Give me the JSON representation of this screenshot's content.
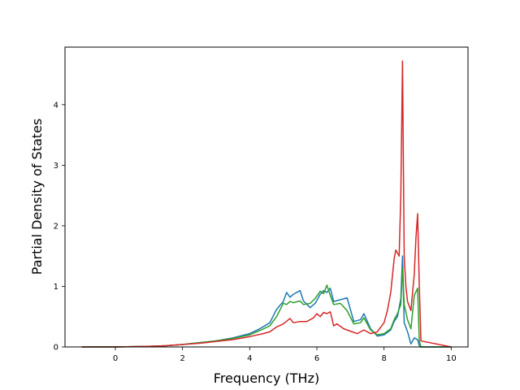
{
  "chart_data": {
    "type": "line",
    "title": "",
    "xlabel": "Frequency (THz)",
    "ylabel": "Partial Density of States",
    "xlim": [
      -1.5,
      10.5
    ],
    "ylim": [
      0,
      4.95
    ],
    "xticks": [
      0,
      2,
      4,
      6,
      8,
      10
    ],
    "yticks": [
      0,
      1,
      2,
      3,
      4
    ],
    "grid": false,
    "legend": "none",
    "series": [
      {
        "color": "#1f77b4",
        "x": [
          -1.0,
          0.0,
          0.5,
          1.0,
          1.5,
          2.0,
          2.5,
          3.0,
          3.5,
          4.0,
          4.3,
          4.6,
          4.8,
          5.0,
          5.1,
          5.2,
          5.3,
          5.5,
          5.6,
          5.8,
          5.95,
          6.1,
          6.2,
          6.3,
          6.4,
          6.5,
          6.7,
          6.9,
          7.1,
          7.3,
          7.4,
          7.6,
          7.8,
          8.0,
          8.2,
          8.3,
          8.4,
          8.5,
          8.55,
          8.6,
          8.7,
          8.8,
          8.9,
          9.0,
          9.05,
          9.1,
          9.2,
          10.0
        ],
        "y": [
          0,
          0,
          0.005,
          0.01,
          0.02,
          0.04,
          0.07,
          0.1,
          0.15,
          0.22,
          0.3,
          0.4,
          0.62,
          0.75,
          0.9,
          0.82,
          0.87,
          0.93,
          0.76,
          0.65,
          0.72,
          0.87,
          0.93,
          0.9,
          0.97,
          0.75,
          0.78,
          0.81,
          0.42,
          0.45,
          0.55,
          0.3,
          0.18,
          0.2,
          0.28,
          0.42,
          0.5,
          0.8,
          1.5,
          0.4,
          0.25,
          0.05,
          0.15,
          0.12,
          0.02,
          0,
          0,
          0
        ]
      },
      {
        "color": "#2ca02c",
        "x": [
          -1.0,
          0.0,
          0.5,
          1.0,
          1.5,
          2.0,
          2.5,
          3.0,
          3.5,
          4.0,
          4.3,
          4.6,
          4.8,
          5.0,
          5.1,
          5.2,
          5.3,
          5.5,
          5.6,
          5.8,
          5.95,
          6.1,
          6.2,
          6.3,
          6.4,
          6.5,
          6.7,
          6.9,
          7.1,
          7.3,
          7.4,
          7.6,
          7.8,
          8.0,
          8.2,
          8.3,
          8.4,
          8.5,
          8.55,
          8.6,
          8.7,
          8.8,
          8.9,
          9.0,
          9.05,
          9.1,
          9.2,
          10.0
        ],
        "y": [
          0,
          0,
          0.005,
          0.01,
          0.02,
          0.04,
          0.07,
          0.1,
          0.14,
          0.2,
          0.27,
          0.35,
          0.5,
          0.72,
          0.7,
          0.75,
          0.73,
          0.76,
          0.7,
          0.72,
          0.8,
          0.92,
          0.88,
          1.02,
          0.85,
          0.7,
          0.72,
          0.6,
          0.38,
          0.4,
          0.48,
          0.28,
          0.2,
          0.22,
          0.3,
          0.45,
          0.55,
          0.7,
          1.3,
          0.7,
          0.45,
          0.3,
          0.85,
          0.97,
          0.1,
          0,
          0,
          0
        ]
      },
      {
        "color": "#d62728",
        "x": [
          -1.0,
          0.0,
          0.5,
          1.0,
          1.5,
          2.0,
          2.5,
          3.0,
          3.5,
          4.0,
          4.4,
          4.6,
          4.8,
          5.0,
          5.2,
          5.3,
          5.5,
          5.7,
          5.9,
          6.0,
          6.1,
          6.2,
          6.3,
          6.4,
          6.5,
          6.6,
          6.8,
          7.0,
          7.2,
          7.4,
          7.6,
          7.8,
          8.0,
          8.1,
          8.2,
          8.3,
          8.35,
          8.45,
          8.5,
          8.55,
          8.6,
          8.65,
          8.7,
          8.8,
          8.9,
          8.95,
          9.0,
          9.05,
          9.1,
          10.0
        ],
        "y": [
          0,
          0,
          0.005,
          0.01,
          0.02,
          0.04,
          0.06,
          0.09,
          0.12,
          0.17,
          0.22,
          0.25,
          0.33,
          0.38,
          0.47,
          0.4,
          0.42,
          0.42,
          0.48,
          0.55,
          0.5,
          0.57,
          0.55,
          0.58,
          0.35,
          0.38,
          0.3,
          0.26,
          0.22,
          0.28,
          0.22,
          0.25,
          0.4,
          0.6,
          0.9,
          1.45,
          1.6,
          1.5,
          2.5,
          4.72,
          1.5,
          1.0,
          0.75,
          0.6,
          1.2,
          1.8,
          2.2,
          1.0,
          0.1,
          0
        ]
      }
    ]
  }
}
